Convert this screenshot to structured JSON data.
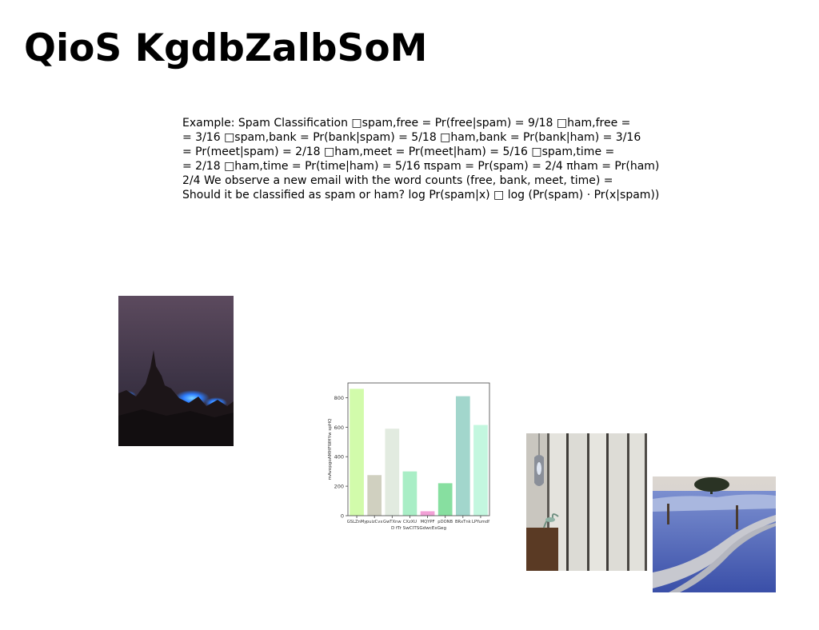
{
  "slide": {
    "title": "QioS KgdbZalbSoM",
    "body_lines": [
      "Example: Spam Classification □spam,free = Pr(free|spam) = 9/18 □ham,free =",
      "= 3/16 □spam,bank = Pr(bank|spam) = 5/18 □ham,bank = Pr(bank|ham) = 3/16",
      "= Pr(meet|spam) = 2/18 □ham,meet = Pr(meet|ham) = 5/16 □spam,time =",
      "= 2/18 □ham,time = Pr(time|ham) = 5/16 πspam = Pr(spam) = 2/4 πham = Pr(ham)",
      "2/4 We observe a new email with the word counts (free, bank, meet, time) =",
      "Should it be classified as spam or ham? log Pr(spam|x) □ log (Pr(spam) · Pr(x|spam))"
    ]
  },
  "images": {
    "mountain_photo": {
      "subject": "dark mountain peak with blue glow at night"
    },
    "door_photo": {
      "subject": "pendant lamp beside white paneled sliding door"
    },
    "road_photo": {
      "subject": "winding dirt road through frosty blue field with tree"
    }
  },
  "chart_data": {
    "type": "bar",
    "categories": [
      "GSLZnMy",
      "puizCvx",
      "GwTXnw",
      "CXzXU",
      "MQYPF",
      "pDONB",
      "BRxTnk",
      "LPYumdf"
    ],
    "values": [
      860,
      275,
      590,
      300,
      30,
      220,
      810,
      615
    ],
    "colors": [
      "#d2fbab",
      "#d0d0c0",
      "#e2ebe0",
      "#a9eec6",
      "#f2a0d6",
      "#87dfa0",
      "#a2d6cc",
      "#c3f7df"
    ],
    "xlabel": "D fTr SwCITSGdwcExGeg",
    "ylabel": "mAvopgoAMHFWHYw spHQ",
    "ylim": [
      0,
      900
    ],
    "yticks": [
      0,
      200,
      400,
      600,
      800
    ],
    "grid": false,
    "legend": "none"
  }
}
